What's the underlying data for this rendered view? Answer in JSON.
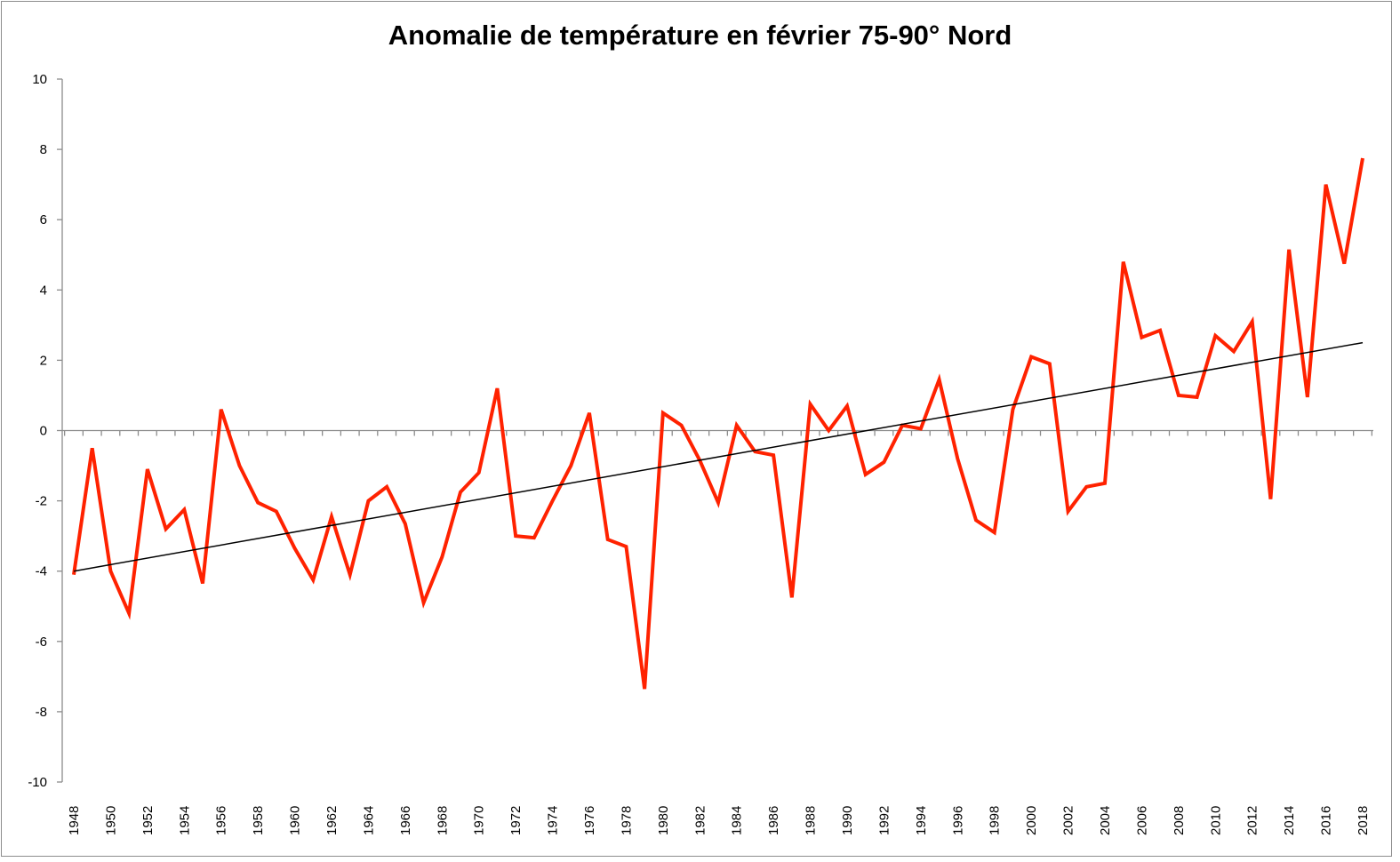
{
  "chart_data": {
    "type": "line",
    "title": "Anomalie de température en février 75-90° Nord",
    "xlabel": "",
    "ylabel": "",
    "ylim": [
      -10,
      10
    ],
    "yticks": [
      10,
      8,
      6,
      4,
      2,
      0,
      -2,
      -4,
      -6,
      -8,
      -10
    ],
    "xlim": [
      1948,
      2018
    ],
    "xtick_step": 2,
    "grid": false,
    "legend": "none",
    "x": [
      1948,
      1949,
      1950,
      1951,
      1952,
      1953,
      1954,
      1955,
      1956,
      1957,
      1958,
      1959,
      1960,
      1961,
      1962,
      1963,
      1964,
      1965,
      1966,
      1967,
      1968,
      1969,
      1970,
      1971,
      1972,
      1973,
      1974,
      1975,
      1976,
      1977,
      1978,
      1979,
      1980,
      1981,
      1982,
      1983,
      1984,
      1985,
      1986,
      1987,
      1988,
      1989,
      1990,
      1991,
      1992,
      1993,
      1994,
      1995,
      1996,
      1997,
      1998,
      1999,
      2000,
      2001,
      2002,
      2003,
      2004,
      2005,
      2006,
      2007,
      2008,
      2009,
      2010,
      2011,
      2012,
      2013,
      2014,
      2015,
      2016,
      2017,
      2018
    ],
    "series": [
      {
        "color": "#ff2200",
        "values": [
          -4.1,
          -0.5,
          -4.0,
          -5.2,
          -1.1,
          -2.8,
          -2.25,
          -4.35,
          0.6,
          -1.0,
          -2.05,
          -2.3,
          -3.35,
          -4.25,
          -2.45,
          -4.1,
          -2.0,
          -1.6,
          -2.65,
          -4.9,
          -3.6,
          -1.75,
          -1.2,
          1.2,
          -3.0,
          -3.05,
          -2.0,
          -1.0,
          0.5,
          -3.1,
          -3.3,
          -7.35,
          0.5,
          0.15,
          -0.85,
          -2.05,
          0.15,
          -0.6,
          -0.7,
          -4.75,
          0.75,
          0.0,
          0.7,
          -1.25,
          -0.9,
          0.15,
          0.05,
          1.45,
          -0.8,
          -2.55,
          -2.9,
          0.6,
          2.1,
          1.9,
          -2.3,
          -1.6,
          -1.5,
          4.8,
          2.65,
          2.85,
          1.0,
          0.95,
          2.7,
          2.25,
          3.1,
          -1.95,
          5.15,
          0.95,
          7.0,
          4.75,
          7.75
        ]
      }
    ],
    "trendline": {
      "type": "linear",
      "color": "#000000",
      "start": [
        1948,
        -4.0
      ],
      "end": [
        2018,
        2.5
      ]
    }
  }
}
